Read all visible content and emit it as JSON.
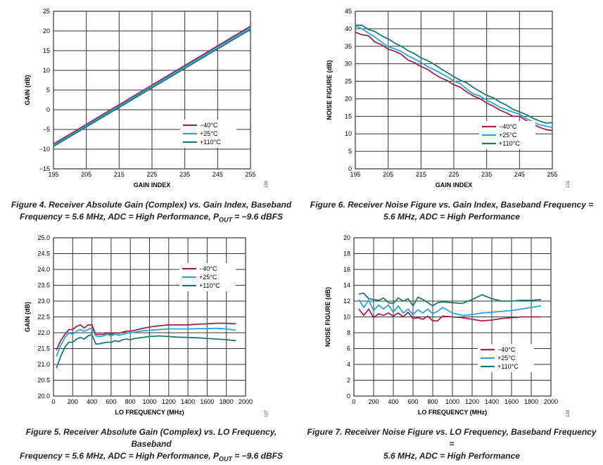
{
  "colors": {
    "m40": "#a0234b",
    "p25": "#2ba3dc",
    "p110": "#1a7a6c",
    "grid": "#333333"
  },
  "captions": {
    "fig4_line1": "Figure 4. Receiver Absolute Gain (Complex) vs. Gain Index, Baseband",
    "fig4_line2a": "Frequency = 5.6 MHz, ADC = High Performance, P",
    "fig4_sub": "OUT",
    "fig4_line2b": " = −9.6 dBFS",
    "fig6_line1": "Figure 6. Receiver Noise Figure vs. Gain Index, Baseband Frequency =",
    "fig6_line2": "5.6 MHz, ADC = High Performance",
    "fig5_line1": "Figure 5. Receiver Absolute Gain (Complex) vs. LO Frequency, Baseband",
    "fig5_line2a": "Frequency = 5.6 MHz, ADC = High Performance, P",
    "fig5_sub": "OUT",
    "fig5_line2b": " = −9.6 dBFS",
    "fig7_line1": "Figure 7. Receiver Noise Figure vs. LO Frequency, Baseband Frequency =",
    "fig7_line2": "5.6 MHz, ADC = High Performance"
  },
  "chart_data": [
    {
      "id": "fig4",
      "type": "line",
      "code": "100",
      "xlabel": "GAIN INDEX",
      "ylabel": "GAIN (dB)",
      "xlim": [
        195,
        255
      ],
      "ylim": [
        -15,
        25
      ],
      "xticks": [
        195,
        205,
        215,
        225,
        235,
        245,
        255
      ],
      "xtick_labels": [
        "195",
        "205",
        "215",
        "225",
        "235",
        "245",
        "255"
      ],
      "yticks": [
        -15,
        -10,
        -5,
        0,
        5,
        10,
        15,
        20,
        25
      ],
      "ytick_labels": [
        "−15",
        "−10",
        "−5",
        "0",
        "5",
        "10",
        "15",
        "20",
        "25"
      ],
      "legend": "bottom-right",
      "series": [
        {
          "name": "−40°C",
          "color": "#a0234b",
          "x": [
            195,
            255
          ],
          "y": [
            -8.7,
            21.2
          ]
        },
        {
          "name": "+25°C",
          "color": "#2ba3dc",
          "x": [
            195,
            255
          ],
          "y": [
            -9.0,
            20.8
          ]
        },
        {
          "name": "+110°C",
          "color": "#1a7a6c",
          "x": [
            195,
            255
          ],
          "y": [
            -9.3,
            20.4
          ]
        }
      ]
    },
    {
      "id": "fig6",
      "type": "line",
      "code": "101",
      "xlabel": "GAIN INDEX",
      "ylabel": "NOISE FIGURE (dB)",
      "xlim": [
        195,
        255
      ],
      "ylim": [
        0,
        45
      ],
      "xticks": [
        195,
        205,
        215,
        225,
        235,
        245,
        255
      ],
      "xtick_labels": [
        "195",
        "205",
        "215",
        "225",
        "235",
        "245",
        "255"
      ],
      "yticks": [
        0,
        5,
        10,
        15,
        20,
        25,
        30,
        35,
        40,
        45
      ],
      "ytick_labels": [
        "0",
        "5",
        "10",
        "15",
        "20",
        "25",
        "30",
        "35",
        "40",
        "45"
      ],
      "legend": "bottom-right",
      "series": [
        {
          "name": "−40°C",
          "color": "#a0234b",
          "x": [
            195,
            197,
            199,
            201,
            203,
            205,
            207,
            209,
            211,
            213,
            215,
            217,
            219,
            221,
            223,
            225,
            227,
            229,
            231,
            233,
            235,
            237,
            239,
            241,
            243,
            245,
            247,
            249,
            251,
            253,
            255
          ],
          "y": [
            39.0,
            38.3,
            38.0,
            36.2,
            35.4,
            34.2,
            33.6,
            32.7,
            31.1,
            30.3,
            29.2,
            28.4,
            27.1,
            26.0,
            25.2,
            24.0,
            23.3,
            21.9,
            20.8,
            20.0,
            18.8,
            17.9,
            16.8,
            16.0,
            15.0,
            15.0,
            13.8,
            12.8,
            11.9,
            11.2,
            10.9
          ]
        },
        {
          "name": "+25°C",
          "color": "#2ba3dc",
          "x": [
            195,
            197,
            199,
            201,
            203,
            205,
            207,
            209,
            211,
            213,
            215,
            217,
            219,
            221,
            223,
            225,
            227,
            229,
            231,
            233,
            235,
            237,
            239,
            241,
            243,
            245,
            247,
            249,
            251,
            253,
            255
          ],
          "y": [
            40.8,
            40.0,
            38.8,
            37.6,
            36.2,
            34.8,
            34.3,
            33.5,
            32.3,
            31.4,
            30.4,
            29.2,
            28.3,
            27.3,
            26.3,
            25.1,
            24.3,
            22.7,
            21.4,
            20.8,
            19.6,
            18.7,
            17.6,
            16.9,
            16.2,
            15.6,
            14.4,
            13.5,
            12.6,
            12.2,
            11.8
          ]
        },
        {
          "name": "+110°C",
          "color": "#1a7a6c",
          "x": [
            195,
            197,
            199,
            201,
            203,
            205,
            207,
            209,
            211,
            213,
            215,
            217,
            219,
            221,
            223,
            225,
            227,
            229,
            231,
            233,
            235,
            237,
            239,
            241,
            243,
            245,
            247,
            249,
            251,
            253,
            255
          ],
          "y": [
            41.0,
            41.0,
            39.8,
            39.2,
            38.0,
            37.1,
            35.9,
            35.0,
            33.8,
            32.9,
            31.7,
            30.9,
            29.9,
            28.6,
            27.5,
            26.3,
            25.3,
            24.5,
            23.2,
            22.1,
            21.0,
            20.3,
            19.1,
            18.2,
            17.0,
            16.3,
            15.5,
            14.5,
            13.7,
            13.1,
            13.2
          ]
        }
      ]
    },
    {
      "id": "fig5",
      "type": "line",
      "code": "127",
      "xlabel": "LO FREQUENCY (MHz)",
      "ylabel": "GAIN (dB)",
      "xlim": [
        0,
        2000
      ],
      "ylim": [
        20.0,
        25.0
      ],
      "xticks": [
        0,
        200,
        400,
        600,
        800,
        1000,
        1200,
        1400,
        1600,
        1800,
        2000
      ],
      "xtick_labels": [
        "0",
        "200",
        "400",
        "600",
        "800",
        "1000",
        "1200",
        "1400",
        "1600",
        "1800",
        "2000"
      ],
      "yticks": [
        20.0,
        20.5,
        21.0,
        21.5,
        22.0,
        22.5,
        23.0,
        23.5,
        24.0,
        24.5,
        25.0
      ],
      "ytick_labels": [
        "20.0",
        "20.5",
        "21.0",
        "21.5",
        "22.0",
        "22.5",
        "23.0",
        "23.5",
        "24.0",
        "24.5",
        "25.0"
      ],
      "legend": "top-right",
      "series": [
        {
          "name": "−40°C",
          "color": "#a0234b",
          "x": [
            30,
            75,
            120,
            160,
            200,
            240,
            280,
            320,
            360,
            400,
            440,
            480,
            520,
            560,
            600,
            640,
            680,
            720,
            760,
            800,
            850,
            900,
            1000,
            1100,
            1200,
            1300,
            1400,
            1500,
            1600,
            1700,
            1800,
            1900
          ],
          "y": [
            21.45,
            21.75,
            21.95,
            22.1,
            22.1,
            22.2,
            22.25,
            22.15,
            22.25,
            22.25,
            21.95,
            21.95,
            21.95,
            22.0,
            21.95,
            22.0,
            21.98,
            22.02,
            22.05,
            22.05,
            22.08,
            22.12,
            22.18,
            22.22,
            22.25,
            22.25,
            22.25,
            22.27,
            22.28,
            22.3,
            22.3,
            22.28
          ]
        },
        {
          "name": "+25°C",
          "color": "#2ba3dc",
          "x": [
            30,
            75,
            120,
            160,
            200,
            240,
            280,
            320,
            360,
            400,
            440,
            480,
            520,
            560,
            600,
            640,
            680,
            720,
            760,
            800,
            850,
            900,
            1000,
            1100,
            1200,
            1300,
            1400,
            1500,
            1600,
            1700,
            1800,
            1900
          ],
          "y": [
            21.25,
            21.6,
            21.85,
            22.0,
            21.95,
            22.05,
            22.1,
            22.05,
            22.1,
            22.15,
            21.9,
            21.88,
            21.9,
            21.95,
            21.9,
            21.95,
            21.92,
            21.95,
            21.98,
            22.0,
            22.02,
            22.05,
            22.08,
            22.1,
            22.12,
            22.12,
            22.12,
            22.13,
            22.13,
            22.14,
            22.12,
            22.08
          ]
        },
        {
          "name": "+110°C",
          "color": "#1a7a6c",
          "x": [
            30,
            75,
            120,
            160,
            200,
            240,
            280,
            320,
            360,
            400,
            440,
            480,
            520,
            560,
            600,
            640,
            680,
            720,
            760,
            800,
            850,
            900,
            1000,
            1100,
            1200,
            1300,
            1400,
            1500,
            1600,
            1700,
            1800,
            1900
          ],
          "y": [
            20.88,
            21.25,
            21.55,
            21.7,
            21.7,
            21.8,
            21.85,
            21.8,
            21.9,
            21.95,
            21.65,
            21.65,
            21.68,
            21.7,
            21.7,
            21.75,
            21.72,
            21.78,
            21.8,
            21.78,
            21.82,
            21.84,
            21.88,
            21.9,
            21.88,
            21.86,
            21.85,
            21.84,
            21.82,
            21.8,
            21.78,
            21.75
          ]
        }
      ]
    },
    {
      "id": "fig7",
      "type": "line",
      "code": "128",
      "xlabel": "LO FREQUENCY (MHz)",
      "ylabel": "NOISE FIGURE (dB)",
      "xlim": [
        0,
        2000
      ],
      "ylim": [
        0,
        20
      ],
      "xticks": [
        0,
        200,
        400,
        600,
        800,
        1000,
        1200,
        1400,
        1600,
        1800,
        2000
      ],
      "xtick_labels": [
        "0",
        "200",
        "400",
        "600",
        "800",
        "1000",
        "1200",
        "1400",
        "1600",
        "1800",
        "2000"
      ],
      "yticks": [
        0,
        2,
        4,
        6,
        8,
        10,
        12,
        14,
        16,
        18,
        20
      ],
      "ytick_labels": [
        "0",
        "2",
        "4",
        "6",
        "8",
        "10",
        "12",
        "14",
        "16",
        "18",
        "20"
      ],
      "legend": "bottom-right",
      "series": [
        {
          "name": "−40°C",
          "color": "#a0234b",
          "x": [
            50,
            100,
            150,
            200,
            250,
            300,
            350,
            400,
            450,
            500,
            550,
            600,
            650,
            700,
            750,
            800,
            850,
            900,
            1000,
            1100,
            1200,
            1300,
            1400,
            1500,
            1600,
            1700,
            1800,
            1900
          ],
          "y": [
            11.0,
            10.2,
            11.0,
            9.9,
            10.4,
            10.2,
            10.5,
            10.1,
            10.5,
            10.0,
            10.6,
            9.8,
            9.9,
            9.7,
            10.1,
            9.5,
            9.5,
            10.1,
            10.0,
            9.9,
            9.7,
            9.5,
            9.6,
            9.8,
            9.9,
            10.0,
            10.0,
            10.0
          ]
        },
        {
          "name": "+25°C",
          "color": "#2ba3dc",
          "x": [
            50,
            100,
            150,
            200,
            250,
            300,
            350,
            400,
            450,
            500,
            550,
            600,
            650,
            700,
            750,
            800,
            850,
            900,
            1000,
            1100,
            1200,
            1300,
            1400,
            1500,
            1600,
            1700,
            1800,
            1900
          ],
          "y": [
            12.2,
            11.2,
            12.1,
            10.8,
            11.5,
            11.0,
            11.5,
            10.6,
            11.4,
            10.5,
            11.0,
            10.3,
            10.9,
            10.5,
            11.0,
            10.4,
            10.7,
            11.2,
            10.5,
            10.2,
            10.3,
            10.5,
            10.6,
            10.7,
            10.8,
            11.0,
            11.2,
            11.4
          ]
        },
        {
          "name": "+110°C",
          "color": "#1a7a6c",
          "x": [
            50,
            100,
            150,
            200,
            250,
            300,
            350,
            400,
            450,
            500,
            550,
            600,
            650,
            700,
            750,
            800,
            850,
            900,
            1000,
            1100,
            1200,
            1300,
            1400,
            1500,
            1600,
            1700,
            1800,
            1900
          ],
          "y": [
            12.9,
            13.0,
            12.3,
            12.2,
            12.1,
            12.4,
            11.8,
            11.7,
            12.4,
            12.0,
            12.3,
            11.4,
            12.5,
            12.2,
            11.8,
            11.4,
            11.8,
            11.9,
            11.8,
            11.7,
            12.2,
            12.8,
            12.3,
            12.0,
            12.0,
            12.1,
            12.1,
            12.2
          ]
        }
      ]
    }
  ]
}
